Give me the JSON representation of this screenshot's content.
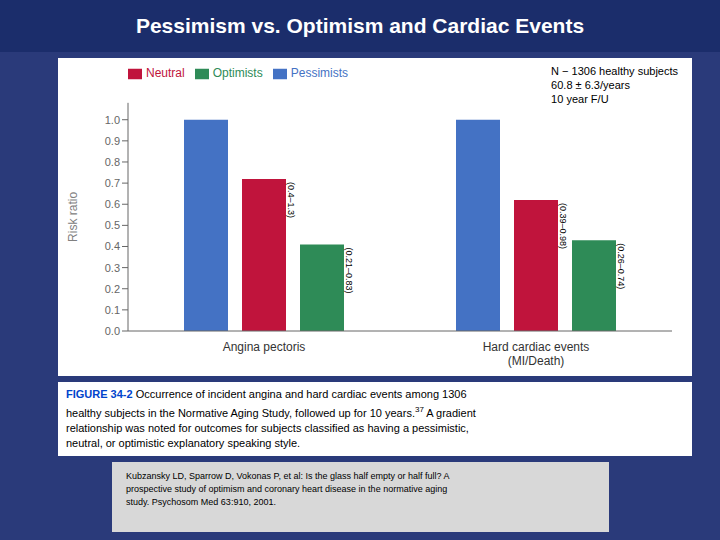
{
  "chart_data": {
    "type": "bar",
    "title": "Pessimism vs. Optimism and Cardiac Events",
    "categories": [
      "Angina pectoris",
      "Hard cardiac events\n(MI/Death)"
    ],
    "series": [
      {
        "name": "Pessimists",
        "color": "#4472c4",
        "values": [
          1.0,
          1.0
        ],
        "ci_labels": [
          null,
          null
        ]
      },
      {
        "name": "Neutral",
        "color": "#c0143c",
        "values": [
          0.72,
          0.62
        ],
        "ci_labels": [
          "(0.4–1.3)",
          "(0.39–0.98)"
        ]
      },
      {
        "name": "Optimists",
        "color": "#2e8b57",
        "values": [
          0.41,
          0.43
        ],
        "ci_labels": [
          "(0.21–0.83)",
          "(0.26–0.74)"
        ]
      }
    ],
    "ylabel": "Risk ratio",
    "ylim": [
      0.0,
      1.08
    ],
    "yticks": [
      {
        "value": 0.0,
        "label": "0.0"
      },
      0.1,
      0.2,
      0.3,
      0.4,
      0.5,
      0.6,
      0.7,
      0.8,
      0.9,
      {
        "value": 1.0,
        "label": "1.0"
      }
    ],
    "grid": false,
    "annotation": "N − 1306 healthy subjects\n60.8 ± 6.3/years\n10 year F/U",
    "caption_label": "FIGURE 34-2",
    "caption": "Occurrence of incident angina and hard cardiac events among 1306\nhealthy subjects in the Normative Aging Study, followed up for 10 years.",
    "caption_superscript": "37",
    "caption_end": " A gradient\nrelationship was noted for outcomes for subjects classified as having a pessimistic,\nneutral, or optimistic explanatory speaking style.",
    "reference": "Kubzansky LD, Sparrow D, Vokonas P, et al: Is the glass half empty or half full? A\nprospective study of optimism and coronary heart disease in the normative aging\nstudy. Psychosom Med 63:910, 2001."
  }
}
